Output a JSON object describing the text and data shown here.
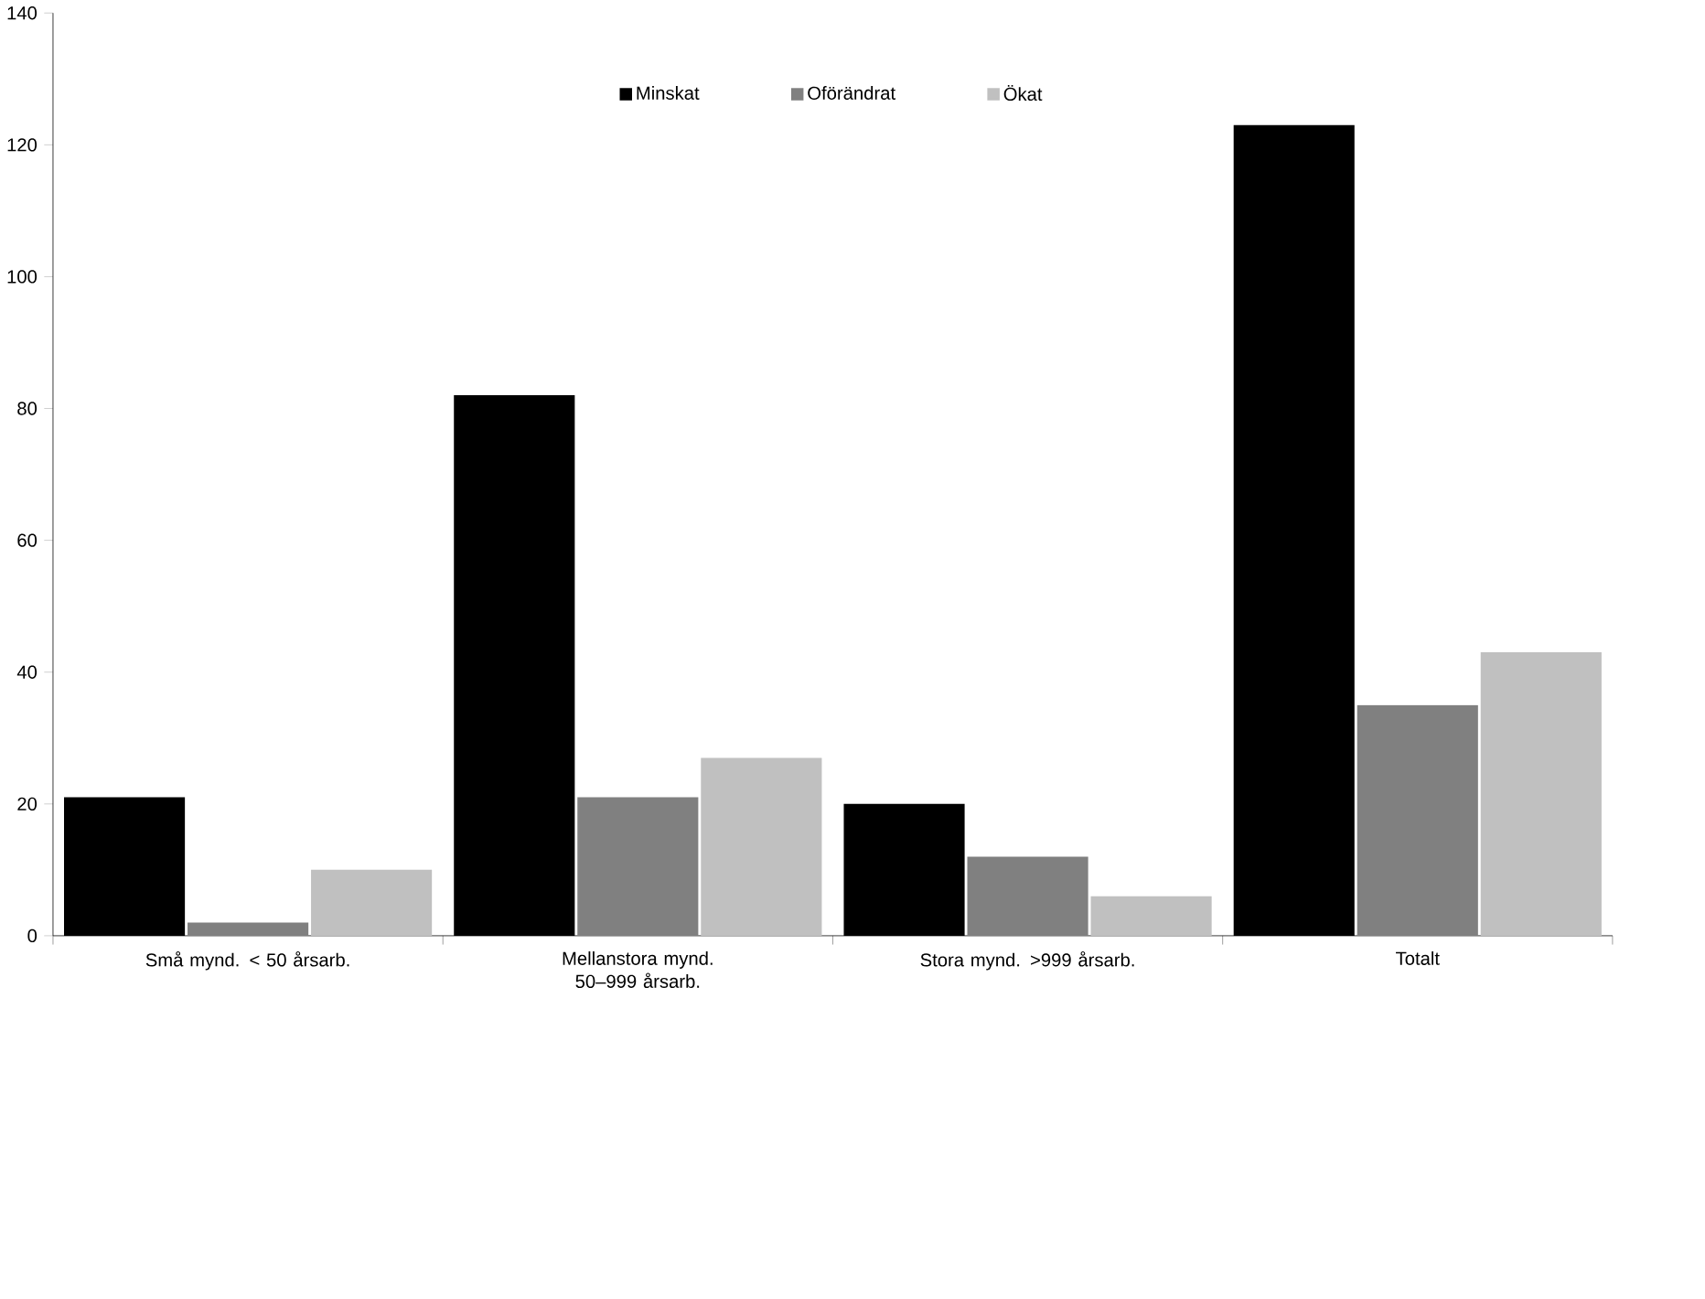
{
  "chart_data": {
    "type": "bar",
    "categories": [
      "Små mynd. < 50 årsarb.",
      "Mellanstora mynd. 50–999 årsarb.",
      "Stora mynd. >999 årsarb.",
      "Totalt"
    ],
    "series": [
      {
        "name": "Minskat",
        "color": "#000000",
        "values": [
          21,
          82,
          20,
          123
        ]
      },
      {
        "name": "Oförändrat",
        "color": "#808080",
        "values": [
          2,
          21,
          12,
          35
        ]
      },
      {
        "name": "Ökat",
        "color": "#c0c0c0",
        "values": [
          10,
          27,
          6,
          43
        ]
      }
    ],
    "ylim": [
      0,
      140
    ],
    "yticks": [
      0,
      20,
      40,
      60,
      80,
      100,
      120,
      140
    ],
    "grid": false,
    "legend": "top"
  }
}
